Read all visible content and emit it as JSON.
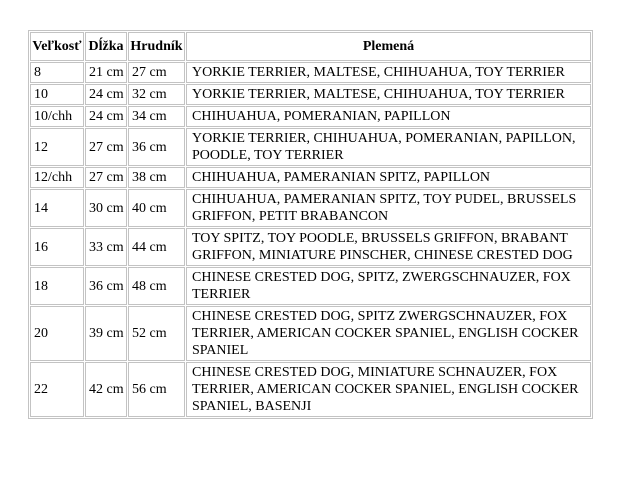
{
  "page": {
    "background_color": "#ffffff",
    "text_color": "#000000",
    "table_border_color": "#c3c3c3"
  },
  "table": {
    "columns": [
      {
        "key": "size",
        "label": "Veľkosť"
      },
      {
        "key": "length",
        "label": "Dĺžka"
      },
      {
        "key": "chest",
        "label": "Hrudník"
      },
      {
        "key": "breeds",
        "label": "Plemená"
      }
    ],
    "rows": [
      {
        "size": "8",
        "length": "21 cm",
        "chest": "27 cm",
        "breeds": "YORKIE TERRIER, MALTESE, CHIHUAHUA, TOY TERRIER"
      },
      {
        "size": "10",
        "length": "24 cm",
        "chest": "32 cm",
        "breeds": "YORKIE TERRIER, MALTESE, CHIHUAHUA, TOY TERRIER"
      },
      {
        "size": "10/chh",
        "length": "24 cm",
        "chest": "34 cm",
        "breeds": "CHIHUAHUA, POMERANIAN, PAPILLON"
      },
      {
        "size": "12",
        "length": "27 cm",
        "chest": "36 cm",
        "breeds": "YORKIE TERRIER, CHIHUAHUA, POMERANIAN, PAPILLON, POODLE, TOY TERRIER"
      },
      {
        "size": "12/chh",
        "length": "27 cm",
        "chest": "38 cm",
        "breeds": "CHIHUAHUA, PAMERANIAN SPITZ, PAPILLON"
      },
      {
        "size": "14",
        "length": "30 cm",
        "chest": "40 cm",
        "breeds": "CHIHUAHUA, PAMERANIAN SPITZ, TOY PUDEL, BRUSSELS GRIFFON, PETIT BRABANCON"
      },
      {
        "size": "16",
        "length": "33 cm",
        "chest": "44 cm",
        "breeds": "TOY SPITZ, TOY POODLE, BRUSSELS GRIFFON, BRABANT GRIFFON, MINIATURE PINSCHER, CHINESE CRESTED DOG"
      },
      {
        "size": "18",
        "length": "36 cm",
        "chest": "48 cm",
        "breeds": "CHINESE CRESTED DOG, SPITZ, ZWERGSCHNAUZER, FOX TERRIER"
      },
      {
        "size": "20",
        "length": "39 cm",
        "chest": "52 cm",
        "breeds": "CHINESE CRESTED DOG, SPITZ ZWERGSCHNAUZER, FOX TERRIER, AMERICAN COCKER SPANIEL, ENGLISH COCKER SPANIEL"
      },
      {
        "size": "22",
        "length": "42 cm",
        "chest": "56 cm",
        "breeds": "CHINESE CRESTED DOG, MINIATURE SCHNAUZER, FOX TERRIER, AMERICAN COCKER SPANIEL, ENGLISH COCKER SPANIEL, BASENJI"
      }
    ]
  }
}
